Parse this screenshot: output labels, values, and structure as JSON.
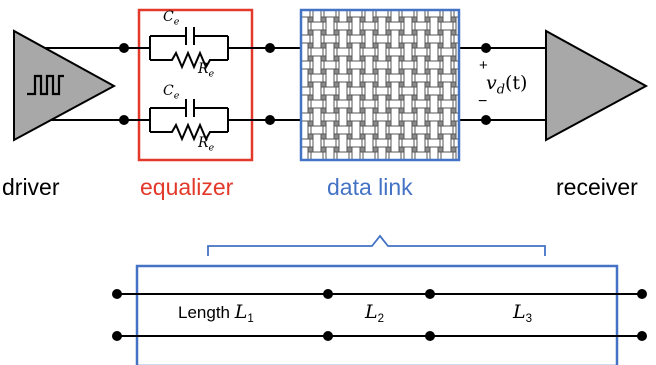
{
  "labels": {
    "driver": "driver",
    "equalizer": "equalizer",
    "data_link": "data link",
    "receiver": "receiver"
  },
  "equalizer": {
    "cap_symbol": "C",
    "cap_subscript": "e",
    "res_symbol": "R",
    "res_subscript": "e"
  },
  "receiver_input": {
    "plus": "+",
    "minus": "−",
    "voltage": "v",
    "voltage_subscript": "d",
    "voltage_arg": "(t)"
  },
  "segments": [
    {
      "prefix": "Length ",
      "symbol": "L",
      "subscript": "1"
    },
    {
      "prefix": "",
      "symbol": "L",
      "subscript": "2"
    },
    {
      "prefix": "",
      "symbol": "L",
      "subscript": "3"
    }
  ],
  "colors": {
    "equalizer": "#e2392b",
    "data_link": "#4472c4",
    "line": "#000000",
    "triangle_fill": "#a8a8a8",
    "weave_fill": "#ffffff",
    "weave_stroke": "#555555"
  }
}
